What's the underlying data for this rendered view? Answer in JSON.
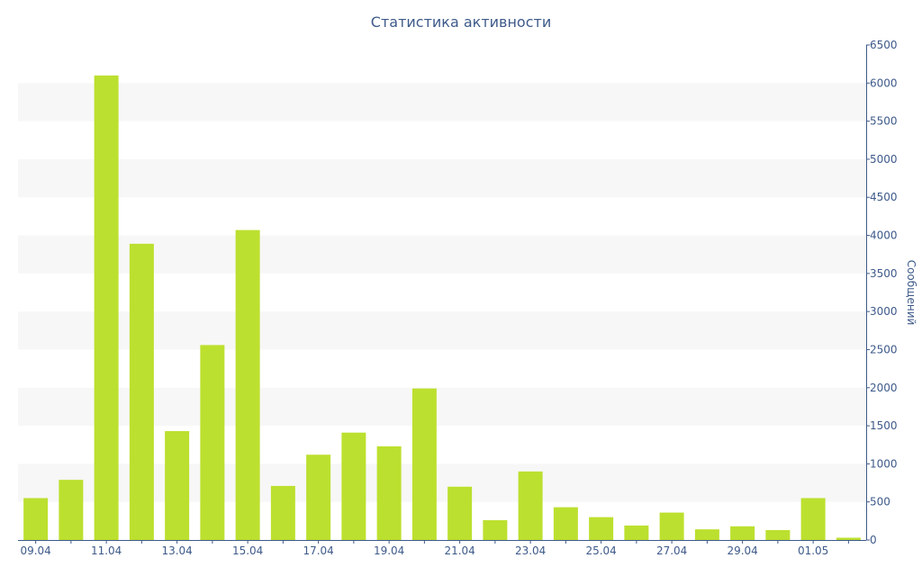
{
  "chart_data": {
    "type": "bar",
    "title": "Статистика активности",
    "ylabel": "Сообщений",
    "xlabel": "",
    "ylim": [
      0,
      6500
    ],
    "yticks": [
      0,
      500,
      1000,
      1500,
      2000,
      2500,
      3000,
      3500,
      4000,
      4500,
      5000,
      5500,
      6000,
      6500
    ],
    "y_axis_side": "right",
    "grid": "alternating horizontal bands",
    "bar_color": "#bce02f",
    "axis_color": "#3e5a8a",
    "band_color": "#f7f7f7",
    "categories": [
      "09.04",
      "10.04",
      "11.04",
      "12.04",
      "13.04",
      "14.04",
      "15.04",
      "16.04",
      "17.04",
      "18.04",
      "19.04",
      "20.04",
      "21.04",
      "22.04",
      "23.04",
      "24.04",
      "25.04",
      "26.04",
      "27.04",
      "28.04",
      "29.04",
      "30.04",
      "01.05",
      "02.05"
    ],
    "tick_labels": [
      "09.04",
      "11.04",
      "13.04",
      "15.04",
      "17.04",
      "19.04",
      "21.04",
      "23.04",
      "25.04",
      "27.04",
      "29.04",
      "01.05"
    ],
    "values": [
      550,
      790,
      6100,
      3890,
      1430,
      2560,
      4070,
      710,
      1120,
      1410,
      1230,
      1990,
      700,
      260,
      900,
      430,
      300,
      190,
      360,
      140,
      180,
      130,
      550,
      30
    ]
  }
}
